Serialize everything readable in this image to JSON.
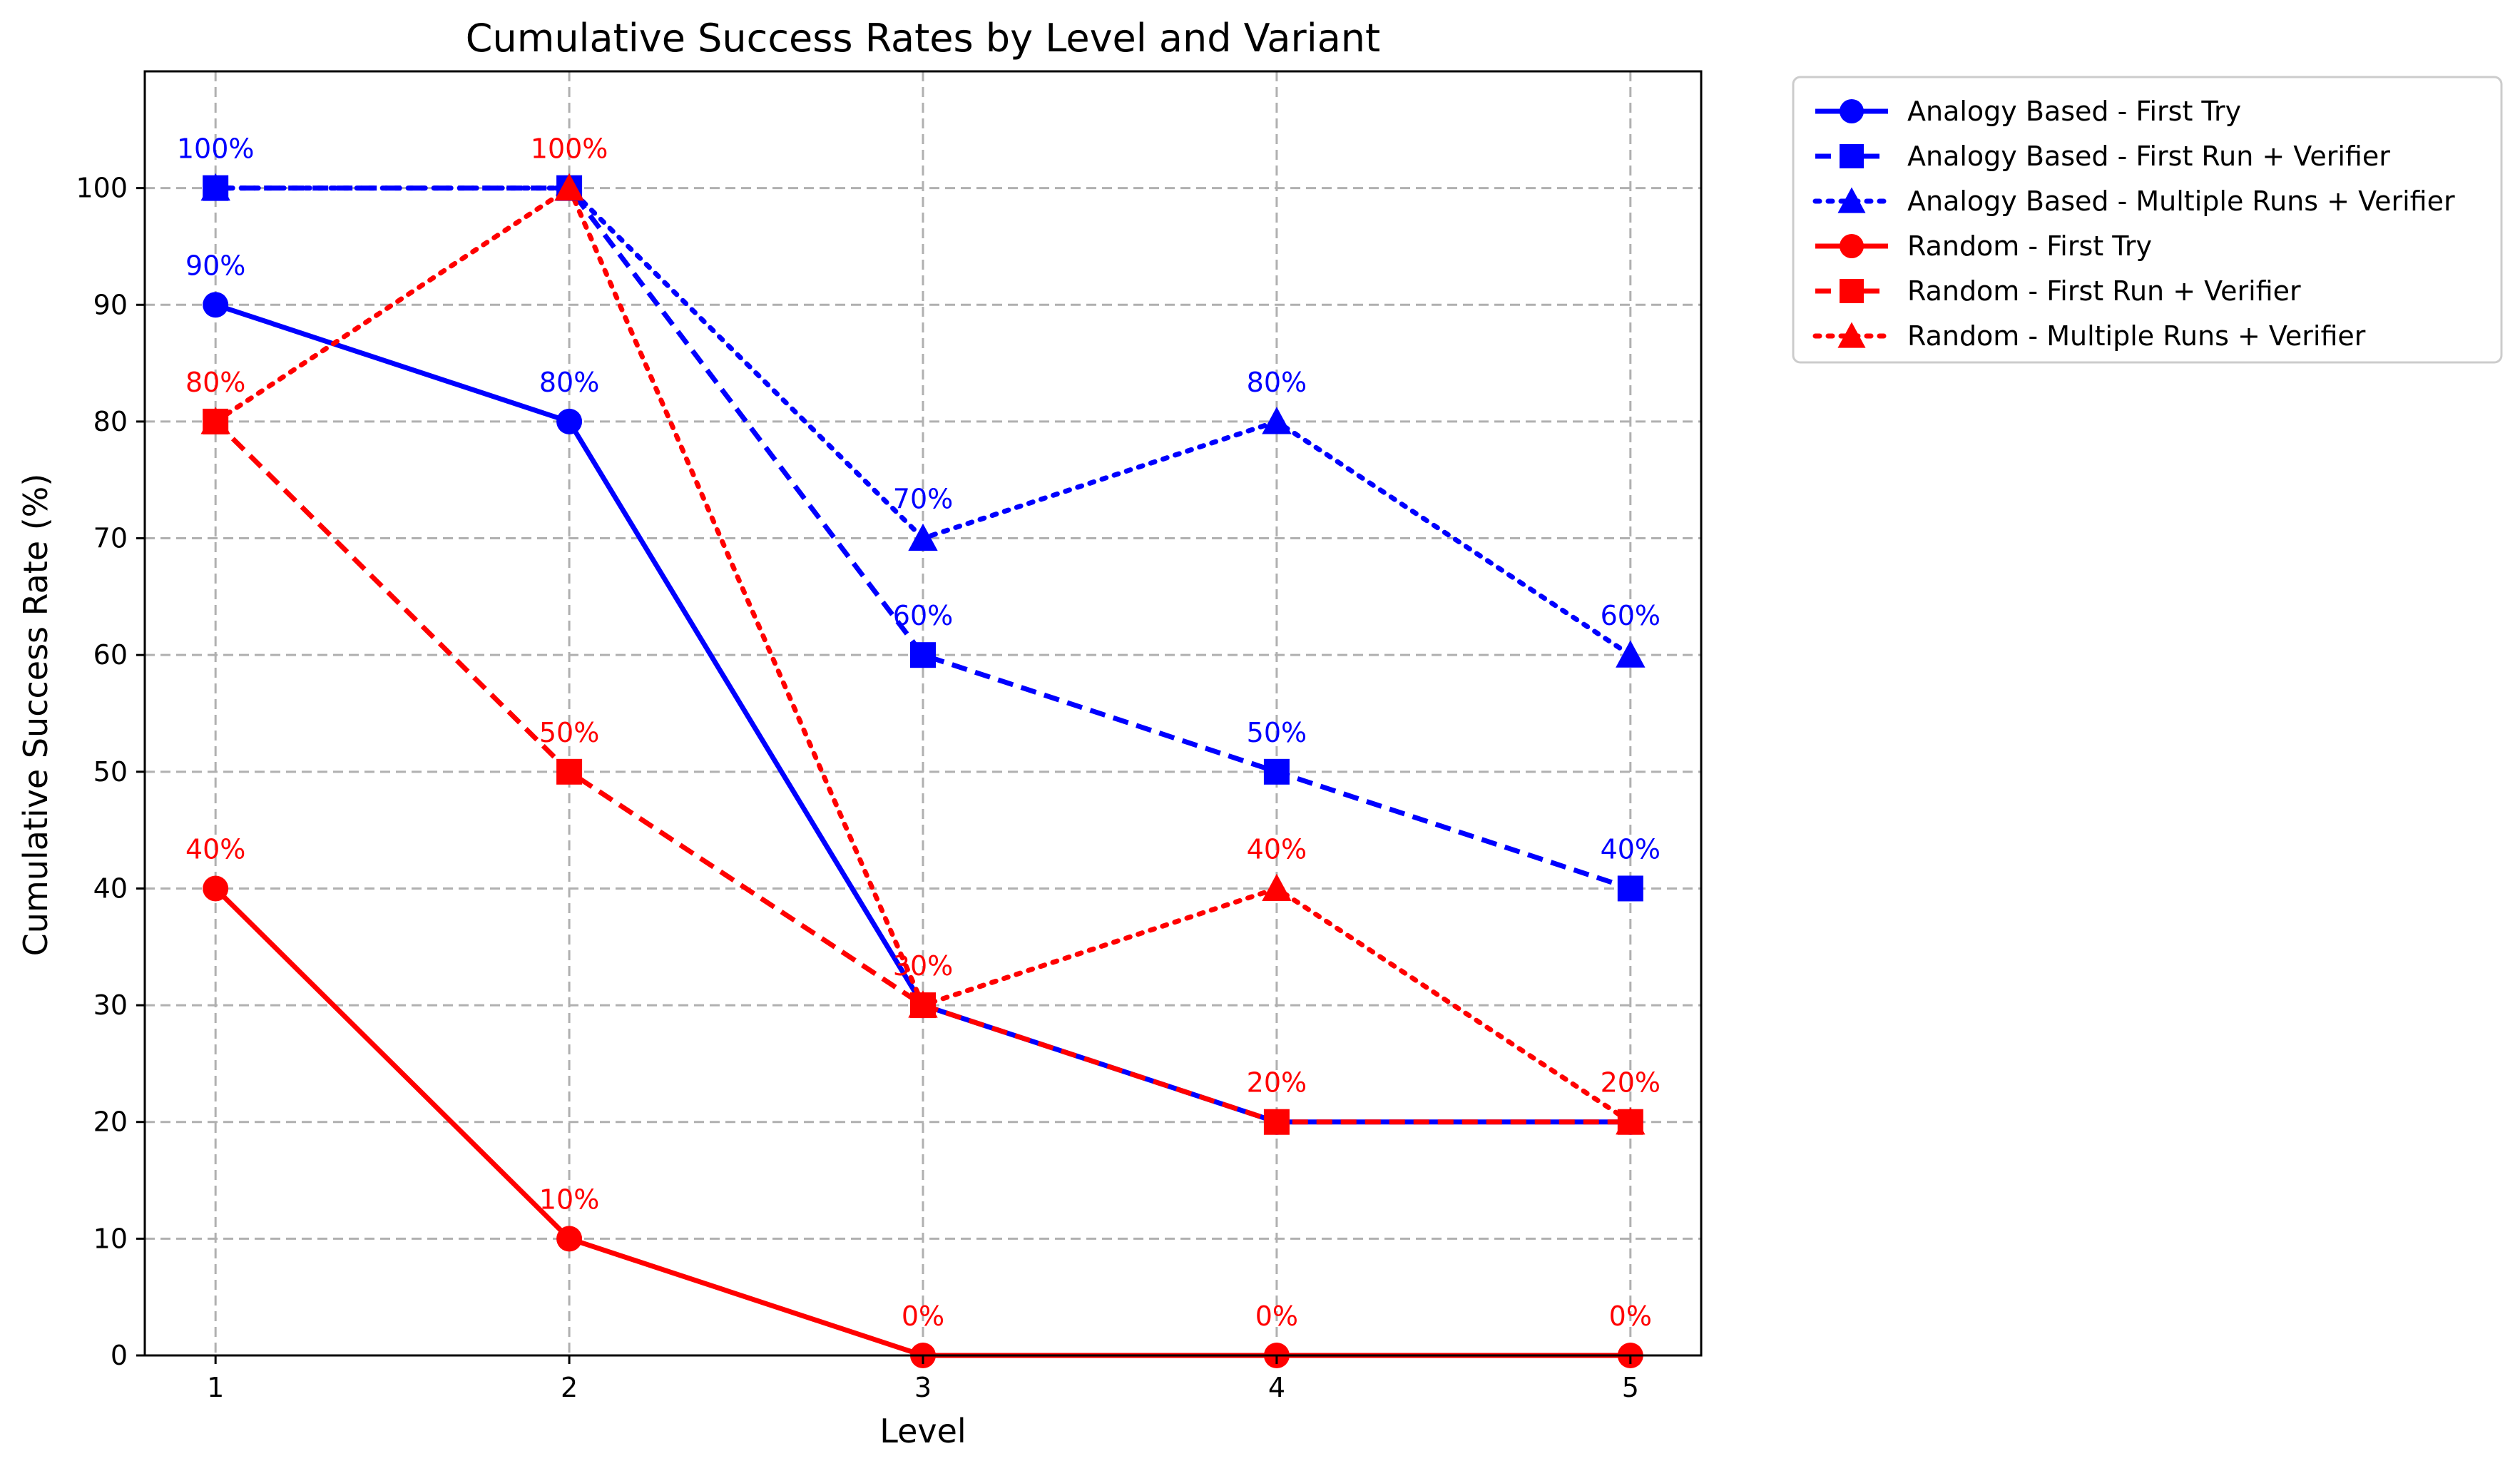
{
  "chart_data": {
    "type": "line",
    "title": "Cumulative Success Rates by Level and Variant",
    "xlabel": "Level",
    "ylabel": "Cumulative Success Rate (%)",
    "x": [
      1,
      2,
      3,
      4,
      5
    ],
    "x_tick_labels": [
      "1",
      "2",
      "3",
      "4",
      "5"
    ],
    "xlim": [
      0.8,
      5.2
    ],
    "ylim": [
      0,
      110
    ],
    "y_ticks": [
      0,
      10,
      20,
      30,
      40,
      50,
      60,
      70,
      80,
      90,
      100
    ],
    "y_tick_labels": [
      "0",
      "10",
      "20",
      "30",
      "40",
      "50",
      "60",
      "70",
      "80",
      "90",
      "100"
    ],
    "grid": true,
    "legend_position": "outside upper right",
    "series": [
      {
        "name": "Analogy Based - First Try",
        "color": "#0000ff",
        "line_style": "solid",
        "marker": "circle",
        "values": [
          90,
          80,
          30,
          20,
          20
        ],
        "point_labels": [
          "90%",
          "80%",
          "",
          "",
          ""
        ]
      },
      {
        "name": "Analogy Based - First Run + Verifier",
        "color": "#0000ff",
        "line_style": "dashed",
        "marker": "square",
        "values": [
          100,
          100,
          60,
          50,
          40
        ],
        "point_labels": [
          "100%",
          "",
          "60%",
          "50%",
          "40%"
        ]
      },
      {
        "name": "Analogy Based - Multiple Runs + Verifier",
        "color": "#0000ff",
        "line_style": "dotted",
        "marker": "triangle",
        "values": [
          100,
          100,
          70,
          80,
          60
        ],
        "point_labels": [
          "",
          "",
          "70%",
          "80%",
          "60%"
        ]
      },
      {
        "name": "Random - First Try",
        "color": "#ff0000",
        "line_style": "solid",
        "marker": "circle",
        "values": [
          40,
          10,
          0,
          0,
          0
        ],
        "point_labels": [
          "40%",
          "10%",
          "0%",
          "0%",
          "0%"
        ]
      },
      {
        "name": "Random - First Run + Verifier",
        "color": "#ff0000",
        "line_style": "dashed",
        "marker": "square",
        "values": [
          80,
          50,
          30,
          20,
          20
        ],
        "point_labels": [
          "",
          "50%",
          "",
          "20%",
          "20%"
        ]
      },
      {
        "name": "Random - Multiple Runs + Verifier",
        "color": "#ff0000",
        "line_style": "dotted",
        "marker": "triangle",
        "values": [
          80,
          100,
          30,
          40,
          20
        ],
        "point_labels": [
          "80%",
          "100%",
          "30%",
          "40%",
          ""
        ]
      }
    ]
  }
}
